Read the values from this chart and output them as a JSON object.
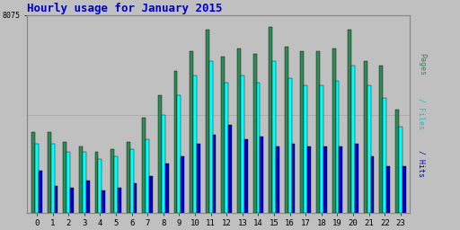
{
  "title": "Hourly usage for January 2015",
  "ylabel_right": "Pages / Files / Hits",
  "background_color": "#c0c0c0",
  "plot_bg_color": "#c0c0c0",
  "bar_colors": [
    "#2e8b57",
    "#00ffff",
    "#0000cd"
  ],
  "bar_edge_color": "#000000",
  "hours": [
    0,
    1,
    2,
    3,
    4,
    5,
    6,
    7,
    8,
    9,
    10,
    11,
    12,
    13,
    14,
    15,
    16,
    17,
    18,
    19,
    20,
    21,
    22,
    23
  ],
  "pages": [
    3300,
    3300,
    2900,
    2700,
    2500,
    2600,
    2900,
    3900,
    4800,
    5800,
    6600,
    7500,
    6400,
    6700,
    6500,
    7600,
    6800,
    6600,
    6600,
    6700,
    7500,
    6200,
    6000,
    4200
  ],
  "files": [
    2800,
    2800,
    2500,
    2500,
    2200,
    2300,
    2600,
    3000,
    4000,
    4800,
    5600,
    6200,
    5300,
    5600,
    5300,
    6200,
    5500,
    5200,
    5200,
    5400,
    6000,
    5200,
    4700,
    3500
  ],
  "hits": [
    1700,
    1100,
    1000,
    1300,
    900,
    1000,
    1200,
    1500,
    2000,
    2300,
    2800,
    3200,
    3600,
    3000,
    3100,
    2700,
    2800,
    2700,
    2700,
    2700,
    2800,
    2300,
    1900,
    1900
  ],
  "ylim": [
    0,
    8075
  ],
  "yticks": [
    8075
  ],
  "grid_y": [
    4000
  ],
  "title_color": "#0000cc",
  "title_fontsize": 9,
  "right_label_colors": [
    "#2e8b57",
    "#00cccc",
    "#0000cd"
  ]
}
